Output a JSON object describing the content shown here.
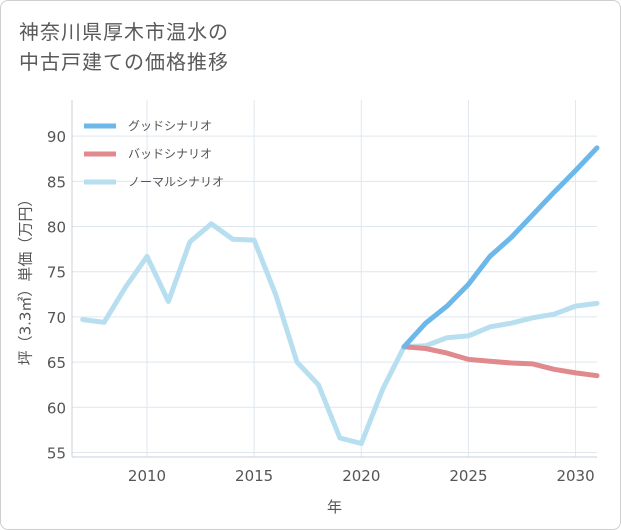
{
  "title": {
    "line1": "神奈川県厚木市温水の",
    "line2": "中古戸建ての価格推移"
  },
  "chart_data": {
    "type": "line",
    "xlabel": "年",
    "ylabel": "坪（3.3㎡）単価（万円）",
    "xlim": [
      2006.5,
      2031
    ],
    "ylim": [
      54.5,
      94
    ],
    "x_ticks": [
      2010,
      2015,
      2020,
      2025,
      2030
    ],
    "y_ticks": [
      55,
      60,
      65,
      70,
      75,
      80,
      85,
      90
    ],
    "legend_position": "top-left",
    "series": [
      {
        "name": "グッドシナリオ",
        "color": "#6cb8ea",
        "width": 5,
        "x": [
          2022,
          2023,
          2024,
          2025,
          2026,
          2027,
          2028,
          2029,
          2030,
          2031
        ],
        "y": [
          66.7,
          69.3,
          71.2,
          73.6,
          76.7,
          78.8,
          81.3,
          83.8,
          86.2,
          88.7
        ]
      },
      {
        "name": "バッドシナリオ",
        "color": "#e08a8e",
        "width": 5,
        "x": [
          2022,
          2023,
          2024,
          2025,
          2026,
          2027,
          2028,
          2029,
          2030,
          2031
        ],
        "y": [
          66.7,
          66.5,
          66.0,
          65.3,
          65.1,
          64.9,
          64.8,
          64.2,
          63.8,
          63.5
        ]
      },
      {
        "name": "ノーマルシナリオ",
        "color": "#b8dff0",
        "width": 5,
        "x": [
          2007,
          2008,
          2009,
          2010,
          2011,
          2012,
          2013,
          2014,
          2015,
          2016,
          2017,
          2018,
          2019,
          2020,
          2021,
          2022,
          2023,
          2024,
          2025,
          2026,
          2027,
          2028,
          2029,
          2030,
          2031
        ],
        "y": [
          69.7,
          69.4,
          73.3,
          76.7,
          71.7,
          78.3,
          80.3,
          78.6,
          78.5,
          72.5,
          65.0,
          62.5,
          56.6,
          56.0,
          62.0,
          66.7,
          66.8,
          67.7,
          67.9,
          68.9,
          69.3,
          69.9,
          70.3,
          71.2,
          71.5
        ]
      }
    ]
  }
}
